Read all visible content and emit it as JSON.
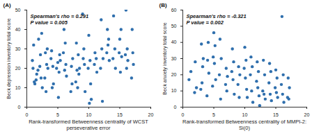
{
  "chart_data": [
    {
      "type": "scatter",
      "title": "(A)",
      "annotations": [
        "Spearman's rho = 0.291",
        "P value = 0.005"
      ],
      "x_label": "Rank-transformed Betweenness centrality of WCST perseverative error",
      "y_label": "Beck depression inventory total score",
      "x": [
        1.0,
        1.2,
        1.1,
        1.3,
        0.9,
        1.8,
        1.6,
        1.9,
        1.5,
        2.2,
        2.4,
        2.1,
        2.3,
        2.5,
        3.0,
        3.2,
        2.9,
        3.1,
        3.4,
        3.3,
        4.0,
        4.2,
        3.9,
        4.3,
        4.1,
        5.0,
        5.3,
        5.1,
        4.8,
        5.4,
        5.2,
        6.0,
        6.2,
        5.9,
        6.3,
        6.1,
        6.4,
        7.2,
        7.4,
        7.1,
        7.3,
        8.0,
        8.3,
        8.1,
        8.4,
        7.9,
        8.2,
        8.5,
        9.0,
        9.2,
        9.1,
        9.3,
        9.4,
        10.0,
        10.2,
        9.9,
        10.3,
        10.1,
        10.4,
        11.0,
        11.2,
        10.9,
        11.3,
        12.0,
        12.2,
        12.1,
        12.3,
        11.9,
        13.0,
        13.2,
        12.9,
        13.3,
        13.1,
        14.0,
        14.2,
        13.9,
        14.3,
        15.0,
        15.2,
        14.9,
        15.3,
        15.1,
        16.0,
        16.2,
        15.9,
        16.3,
        16.1,
        17.0,
        17.2,
        16.9,
        17.1
      ],
      "values": [
        20,
        13,
        32,
        12,
        24,
        19,
        17,
        35,
        14,
        27,
        38,
        21,
        15,
        10,
        28,
        22,
        15,
        8,
        20,
        30,
        29,
        21,
        25,
        12,
        10,
        23,
        27,
        5,
        20,
        24,
        18,
        40,
        33,
        28,
        22,
        19,
        16,
        21,
        25,
        8,
        12,
        33,
        27,
        19,
        17,
        13,
        10,
        20,
        48,
        30,
        25,
        22,
        8,
        37,
        24,
        20,
        12,
        2,
        4,
        28,
        25,
        22,
        18,
        45,
        3,
        30,
        25,
        20,
        40,
        35,
        28,
        24,
        32,
        47,
        30,
        25,
        20,
        35,
        40,
        28,
        26,
        18,
        50,
        30,
        27,
        24,
        20,
        40,
        22,
        15,
        28
      ],
      "color": "#2f6fad",
      "marker": "circle",
      "xlim": [
        0,
        20
      ],
      "xticks": [
        0,
        5,
        10,
        15,
        20
      ],
      "ylim": [
        0,
        50
      ],
      "yticks": [
        0,
        10,
        20,
        30,
        40,
        50
      ]
    },
    {
      "type": "scatter",
      "title": "(B)",
      "annotations": [
        "Spearman's rho = -0.321",
        "P value = 0.002"
      ],
      "x_label": "Rank-transformed Betweenness centrality of MMPI-2: Si(0)",
      "y_label": "Beck anxiety inventory total score",
      "x": [
        1.0,
        1.3,
        2.0,
        2.2,
        1.9,
        3.0,
        3.2,
        2.9,
        3.1,
        3.3,
        4.0,
        4.2,
        3.9,
        4.1,
        5.0,
        5.2,
        4.9,
        5.1,
        5.3,
        4.8,
        6.0,
        6.2,
        5.9,
        6.1,
        7.0,
        7.2,
        6.9,
        7.1,
        8.0,
        8.2,
        7.9,
        8.1,
        8.3,
        9.0,
        9.2,
        8.9,
        9.1,
        10.0,
        10.2,
        9.9,
        10.1,
        10.3,
        10.4,
        11.0,
        11.2,
        10.9,
        11.1,
        11.3,
        12.0,
        12.2,
        11.9,
        12.1,
        12.3,
        12.4,
        13.0,
        13.2,
        12.9,
        13.1,
        13.3,
        14.0,
        14.2,
        13.9,
        14.1,
        14.3,
        15.0,
        15.2,
        14.9,
        15.1,
        15.3,
        16.0,
        16.2,
        15.9,
        16.1,
        16.3,
        17.0,
        17.2,
        16.9,
        17.1
      ],
      "values": [
        17,
        22,
        28,
        12,
        9,
        39,
        25,
        11,
        15,
        30,
        29,
        21,
        7,
        40,
        46,
        38,
        31,
        27,
        17,
        13,
        42,
        30,
        20,
        5,
        24,
        19,
        14,
        10,
        36,
        28,
        22,
        17,
        8,
        25,
        20,
        14,
        6,
        37,
        29,
        24,
        18,
        11,
        6,
        31,
        25,
        20,
        10,
        3,
        28,
        22,
        16,
        12,
        7,
        1,
        29,
        20,
        10,
        8,
        5,
        27,
        22,
        15,
        8,
        4,
        23,
        18,
        12,
        9,
        6,
        56,
        20,
        14,
        8,
        3,
        18,
        12,
        6,
        5
      ],
      "color": "#2f6fad",
      "marker": "circle",
      "xlim": [
        0,
        20
      ],
      "xticks": [
        0,
        5,
        10,
        15,
        20
      ],
      "ylim": [
        0,
        60
      ],
      "yticks": [
        0,
        10,
        20,
        30,
        40,
        50,
        60
      ]
    }
  ]
}
